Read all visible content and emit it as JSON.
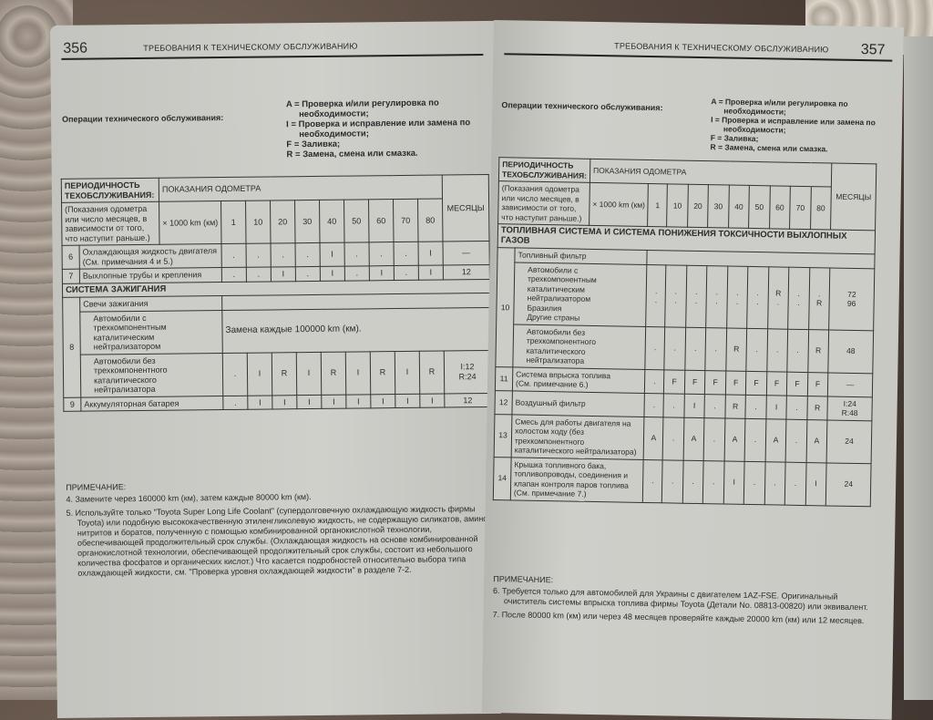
{
  "left_page": {
    "page_number": "356",
    "header_title": "ТРЕБОВАНИЯ К ТЕХНИЧЕСКОМУ ОБСЛУЖИВАНИЮ",
    "operations_label": "Операции технического обслуживания:",
    "legend": [
      "A = Проверка и/или регулировка по необходимости;",
      "I = Проверка и исправление или замена по необходимости;",
      "F = Заливка;",
      "R = Замена, смена или смазка."
    ],
    "table": {
      "period_label": "ПЕРИОДИЧНОСТЬ ТЕХОБСЛУЖИВАНИЯ:",
      "odometer_label": "ПОКАЗАНИЯ ОДОМЕТРА",
      "note_label": "(Показания одометра или число месяцев, в зависимости от того, что наступит раньше.)",
      "unit_label": "× 1000 km (км)",
      "intervals": [
        "1",
        "10",
        "20",
        "30",
        "40",
        "50",
        "60",
        "70",
        "80"
      ],
      "months_label": "МЕСЯЦЫ",
      "rows": [
        {
          "type": "item",
          "num": "6",
          "label": "Охлаждающая жидкость двигателя\n(См. примечания 4 и 5.)",
          "cells": [
            ".",
            ".",
            ".",
            ".",
            "I",
            ".",
            ".",
            ".",
            "I"
          ],
          "months": "—"
        },
        {
          "type": "item",
          "num": "7",
          "label": "Выхлопные трубы и крепления",
          "cells": [
            ".",
            ".",
            "I",
            ".",
            "I",
            ".",
            "I",
            ".",
            "I"
          ],
          "months": "12"
        },
        {
          "type": "section",
          "label": "СИСТЕМА ЗАЖИГАНИЯ"
        },
        {
          "type": "group",
          "num": "8",
          "sub_header": "Свечи зажигания",
          "subrows": [
            {
              "label": "Автомобили с трехкомпонентным каталитическим нейтрализатором",
              "span_text": "Замена каждые 100000 km (км)."
            },
            {
              "label": "Автомобили без трехкомпонентного каталитического нейтрализатора",
              "cells": [
                ".",
                "I",
                "R",
                "I",
                "R",
                "I",
                "R",
                "I",
                "R"
              ],
              "months": "I:12\nR:24"
            }
          ]
        },
        {
          "type": "item",
          "num": "9",
          "label": "Аккумуляторная батарея",
          "cells": [
            ".",
            "I",
            "I",
            "I",
            "I",
            "I",
            "I",
            "I",
            "I"
          ],
          "months": "12"
        }
      ]
    },
    "notes_title": "ПРИМЕЧАНИЕ:",
    "notes": [
      "4. Замените через 160000 km (км), затем каждые 80000 km (км).",
      "5. Используйте только \"Toyota Super Long Life Coolant\" (супердолговечную охлаждающую жидкость фирмы Toyota) или подобную высококачественную этиленгликолевую жидкость, не содержащую силикатов, аминов, нитритов и боратов, полученную с помощью комбинированной органокислотной технологии, обеспечивающей продолжительный срок службы. (Охлаждающая жидкость на основе комбинированной органокислотной технологии, обеспечивающей продолжительный срок службы, состоит из небольшого количества фосфатов и органических кислот.) Что касается подробностей относительно выбора типа охлаждающей жидкости, см. \"Проверка уровня охлаждающей жидкости\" в разделе 7-2."
    ]
  },
  "right_page": {
    "page_number": "357",
    "header_title": "ТРЕБОВАНИЯ К ТЕХНИЧЕСКОМУ ОБСЛУЖИВАНИЮ",
    "operations_label": "Операции технического обслуживания:",
    "legend": [
      "A = Проверка и/или регулировка по необходимости;",
      "I = Проверка и исправление или замена по необходимости;",
      "F = Заливка;",
      "R = Замена, смена или смазка."
    ],
    "table": {
      "period_label": "ПЕРИОДИЧНОСТЬ ТЕХОБСЛУЖИВАНИЯ:",
      "odometer_label": "ПОКАЗАНИЯ ОДОМЕТРА",
      "note_label": "(Показания одометра или число месяцев, в зависимости от того, что наступит раньше.)",
      "unit_label": "× 1000 km (км)",
      "intervals": [
        "1",
        "10",
        "20",
        "30",
        "40",
        "50",
        "60",
        "70",
        "80"
      ],
      "months_label": "МЕСЯЦЫ",
      "rows": [
        {
          "type": "section",
          "label": "ТОПЛИВНАЯ СИСТЕМА И СИСТЕМА ПОНИЖЕНИЯ ТОКСИЧНОСТИ ВЫХЛОПНЫХ ГАЗОВ"
        },
        {
          "type": "group",
          "num": "10",
          "sub_header": "Топливный фильтр",
          "subrows": [
            {
              "label": "Автомобили с трехкомпонентным каталитическим нейтрализатором\n    Бразилия\n    Другие страны",
              "cells": [
                ".\n.",
                ".\n.",
                ".\n.",
                ".\n.",
                ".\n.",
                ".\n.",
                "R\n.",
                ".\n.",
                ".\nR"
              ],
              "months": "72\n96"
            },
            {
              "label": "Автомобили без трехкомпонентного каталитического нейтрализатора",
              "cells": [
                ".",
                ".",
                ".",
                ".",
                "R",
                ".",
                ".",
                ".",
                "R"
              ],
              "months": "48"
            }
          ]
        },
        {
          "type": "item",
          "num": "11",
          "label": "Система впрыска топлива\n(См. примечание 6.)",
          "cells": [
            ".",
            "F",
            "F",
            "F",
            "F",
            "F",
            "F",
            "F",
            "F"
          ],
          "months": "—"
        },
        {
          "type": "item",
          "num": "12",
          "label": "Воздушный фильтр",
          "cells": [
            ".",
            ".",
            "I",
            ".",
            "R",
            ".",
            "I",
            ".",
            "R"
          ],
          "months": "I:24\nR:48"
        },
        {
          "type": "item",
          "num": "13",
          "label": "Смесь для работы двигателя на холостом ходу (без трехкомпонентного каталитического нейтрализатора)",
          "cells": [
            "A",
            ".",
            "A",
            ".",
            "A",
            ".",
            "A",
            ".",
            "A"
          ],
          "months": "24"
        },
        {
          "type": "item",
          "num": "14",
          "label": "Крышка топливного бака, топливопроводы, соединения и клапан контроля паров топлива (См. примечание 7.)",
          "cells": [
            ".",
            ".",
            ".",
            ".",
            "I",
            ".",
            ".",
            ".",
            "I"
          ],
          "months": "24"
        }
      ]
    },
    "notes_title": "ПРИМЕЧАНИЕ:",
    "notes": [
      "6. Требуется только для автомобилей для Украины с двигателем 1AZ-FSE. Оригинальный очиститель системы впрыска топлива фирмы Toyota (Детали No. 08813-00820) или эквивалент.",
      "7. После 80000 km (км) или через 48 месяцев проверяйте каждые 20000 km (км) или 12 месяцев."
    ]
  }
}
